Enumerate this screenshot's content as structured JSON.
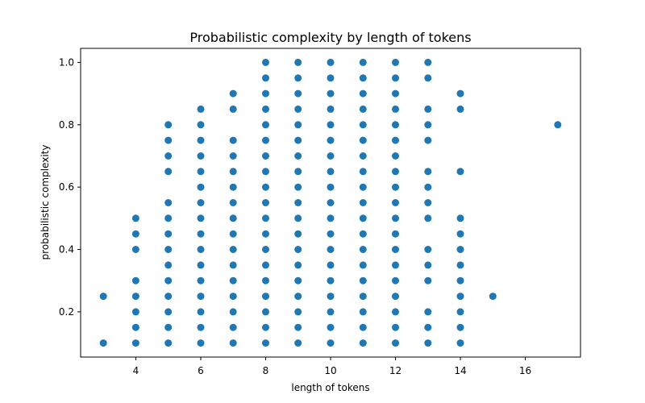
{
  "chart_data": {
    "type": "scatter",
    "title": "Probabilistic complexity by length of tokens",
    "xlabel": "length of tokens",
    "ylabel": "probabilistic complexity",
    "xlim": [
      2.3,
      17.7
    ],
    "ylim": [
      0.055,
      1.045
    ],
    "xticks": [
      4,
      6,
      8,
      10,
      12,
      14,
      16
    ],
    "yticks": [
      0.2,
      0.4,
      0.6,
      0.8,
      1.0
    ],
    "xtick_labels": [
      "4",
      "6",
      "8",
      "10",
      "12",
      "14",
      "16"
    ],
    "ytick_labels": [
      "0.2",
      "0.4",
      "0.6",
      "0.8",
      "1.0"
    ],
    "grid": false,
    "marker_color": "#1f77b4",
    "points": [
      [
        3,
        0.25
      ],
      [
        3,
        0.1
      ],
      [
        4,
        0.5
      ],
      [
        4,
        0.45
      ],
      [
        4,
        0.4
      ],
      [
        4,
        0.3
      ],
      [
        4,
        0.25
      ],
      [
        4,
        0.2
      ],
      [
        4,
        0.15
      ],
      [
        4,
        0.1
      ],
      [
        5,
        0.8
      ],
      [
        5,
        0.75
      ],
      [
        5,
        0.7
      ],
      [
        5,
        0.65
      ],
      [
        5,
        0.55
      ],
      [
        5,
        0.5
      ],
      [
        5,
        0.45
      ],
      [
        5,
        0.4
      ],
      [
        5,
        0.35
      ],
      [
        5,
        0.3
      ],
      [
        5,
        0.25
      ],
      [
        5,
        0.2
      ],
      [
        5,
        0.15
      ],
      [
        5,
        0.1
      ],
      [
        6,
        0.85
      ],
      [
        6,
        0.8
      ],
      [
        6,
        0.75
      ],
      [
        6,
        0.7
      ],
      [
        6,
        0.65
      ],
      [
        6,
        0.6
      ],
      [
        6,
        0.55
      ],
      [
        6,
        0.5
      ],
      [
        6,
        0.45
      ],
      [
        6,
        0.4
      ],
      [
        6,
        0.35
      ],
      [
        6,
        0.3
      ],
      [
        6,
        0.25
      ],
      [
        6,
        0.2
      ],
      [
        6,
        0.15
      ],
      [
        6,
        0.1
      ],
      [
        7,
        0.9
      ],
      [
        7,
        0.85
      ],
      [
        7,
        0.75
      ],
      [
        7,
        0.7
      ],
      [
        7,
        0.65
      ],
      [
        7,
        0.6
      ],
      [
        7,
        0.55
      ],
      [
        7,
        0.5
      ],
      [
        7,
        0.45
      ],
      [
        7,
        0.4
      ],
      [
        7,
        0.35
      ],
      [
        7,
        0.3
      ],
      [
        7,
        0.25
      ],
      [
        7,
        0.2
      ],
      [
        7,
        0.15
      ],
      [
        7,
        0.1
      ],
      [
        8,
        1.0
      ],
      [
        8,
        0.95
      ],
      [
        8,
        0.9
      ],
      [
        8,
        0.85
      ],
      [
        8,
        0.8
      ],
      [
        8,
        0.75
      ],
      [
        8,
        0.7
      ],
      [
        8,
        0.65
      ],
      [
        8,
        0.6
      ],
      [
        8,
        0.55
      ],
      [
        8,
        0.5
      ],
      [
        8,
        0.45
      ],
      [
        8,
        0.4
      ],
      [
        8,
        0.35
      ],
      [
        8,
        0.3
      ],
      [
        8,
        0.25
      ],
      [
        8,
        0.2
      ],
      [
        8,
        0.15
      ],
      [
        8,
        0.1
      ],
      [
        9,
        1.0
      ],
      [
        9,
        0.95
      ],
      [
        9,
        0.9
      ],
      [
        9,
        0.85
      ],
      [
        9,
        0.8
      ],
      [
        9,
        0.75
      ],
      [
        9,
        0.7
      ],
      [
        9,
        0.65
      ],
      [
        9,
        0.6
      ],
      [
        9,
        0.55
      ],
      [
        9,
        0.5
      ],
      [
        9,
        0.45
      ],
      [
        9,
        0.4
      ],
      [
        9,
        0.35
      ],
      [
        9,
        0.3
      ],
      [
        9,
        0.25
      ],
      [
        9,
        0.2
      ],
      [
        9,
        0.15
      ],
      [
        9,
        0.1
      ],
      [
        10,
        1.0
      ],
      [
        10,
        0.95
      ],
      [
        10,
        0.9
      ],
      [
        10,
        0.85
      ],
      [
        10,
        0.8
      ],
      [
        10,
        0.75
      ],
      [
        10,
        0.7
      ],
      [
        10,
        0.65
      ],
      [
        10,
        0.6
      ],
      [
        10,
        0.55
      ],
      [
        10,
        0.5
      ],
      [
        10,
        0.45
      ],
      [
        10,
        0.4
      ],
      [
        10,
        0.35
      ],
      [
        10,
        0.3
      ],
      [
        10,
        0.25
      ],
      [
        10,
        0.2
      ],
      [
        10,
        0.15
      ],
      [
        10,
        0.1
      ],
      [
        11,
        1.0
      ],
      [
        11,
        0.95
      ],
      [
        11,
        0.9
      ],
      [
        11,
        0.85
      ],
      [
        11,
        0.8
      ],
      [
        11,
        0.75
      ],
      [
        11,
        0.7
      ],
      [
        11,
        0.65
      ],
      [
        11,
        0.6
      ],
      [
        11,
        0.55
      ],
      [
        11,
        0.5
      ],
      [
        11,
        0.45
      ],
      [
        11,
        0.4
      ],
      [
        11,
        0.35
      ],
      [
        11,
        0.3
      ],
      [
        11,
        0.25
      ],
      [
        11,
        0.2
      ],
      [
        11,
        0.15
      ],
      [
        11,
        0.1
      ],
      [
        12,
        1.0
      ],
      [
        12,
        0.95
      ],
      [
        12,
        0.9
      ],
      [
        12,
        0.85
      ],
      [
        12,
        0.8
      ],
      [
        12,
        0.75
      ],
      [
        12,
        0.7
      ],
      [
        12,
        0.65
      ],
      [
        12,
        0.6
      ],
      [
        12,
        0.55
      ],
      [
        12,
        0.5
      ],
      [
        12,
        0.45
      ],
      [
        12,
        0.4
      ],
      [
        12,
        0.35
      ],
      [
        12,
        0.3
      ],
      [
        12,
        0.25
      ],
      [
        12,
        0.2
      ],
      [
        12,
        0.15
      ],
      [
        12,
        0.1
      ],
      [
        13,
        1.0
      ],
      [
        13,
        0.95
      ],
      [
        13,
        0.85
      ],
      [
        13,
        0.8
      ],
      [
        13,
        0.75
      ],
      [
        13,
        0.65
      ],
      [
        13,
        0.6
      ],
      [
        13,
        0.55
      ],
      [
        13,
        0.5
      ],
      [
        13,
        0.4
      ],
      [
        13,
        0.35
      ],
      [
        13,
        0.3
      ],
      [
        13,
        0.2
      ],
      [
        13,
        0.15
      ],
      [
        13,
        0.1
      ],
      [
        14,
        0.9
      ],
      [
        14,
        0.85
      ],
      [
        14,
        0.65
      ],
      [
        14,
        0.5
      ],
      [
        14,
        0.45
      ],
      [
        14,
        0.4
      ],
      [
        14,
        0.35
      ],
      [
        14,
        0.3
      ],
      [
        14,
        0.25
      ],
      [
        14,
        0.2
      ],
      [
        14,
        0.15
      ],
      [
        14,
        0.1
      ],
      [
        15,
        0.25
      ],
      [
        17,
        0.8
      ]
    ]
  }
}
